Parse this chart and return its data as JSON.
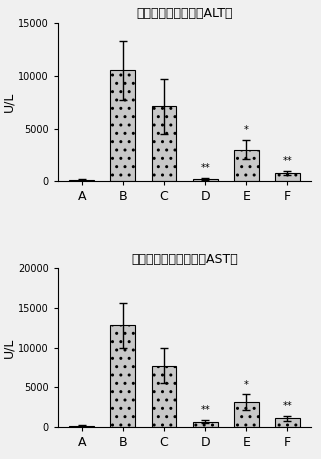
{
  "alt": {
    "title": "丙氨酸氨基转移酶（ALT）",
    "categories": [
      "A",
      "B",
      "C",
      "D",
      "E",
      "F"
    ],
    "values": [
      150,
      10500,
      7100,
      200,
      3000,
      800
    ],
    "errors": [
      80,
      2800,
      2600,
      100,
      900,
      200
    ],
    "ylabel": "U/L",
    "ylim": [
      0,
      15000
    ],
    "yticks": [
      0,
      5000,
      10000,
      15000
    ],
    "annotations": [
      "",
      "",
      "",
      "**",
      "*",
      "**"
    ]
  },
  "ast": {
    "title": "天冬氨酸氨基转移酶（AST）",
    "categories": [
      "A",
      "B",
      "C",
      "D",
      "E",
      "F"
    ],
    "values": [
      150,
      12800,
      7700,
      650,
      3100,
      1100
    ],
    "errors": [
      80,
      2800,
      2200,
      200,
      1000,
      300
    ],
    "ylabel": "U/L",
    "ylim": [
      0,
      20000
    ],
    "yticks": [
      0,
      5000,
      10000,
      15000,
      20000
    ],
    "annotations": [
      "",
      "",
      "",
      "**",
      "*",
      "**"
    ]
  },
  "bar_color": "#c8c8c8",
  "bar_edgecolor": "#000000",
  "bar_hatch": "..",
  "errorbar_color": "#000000",
  "bg_color": "#f0f0f0"
}
